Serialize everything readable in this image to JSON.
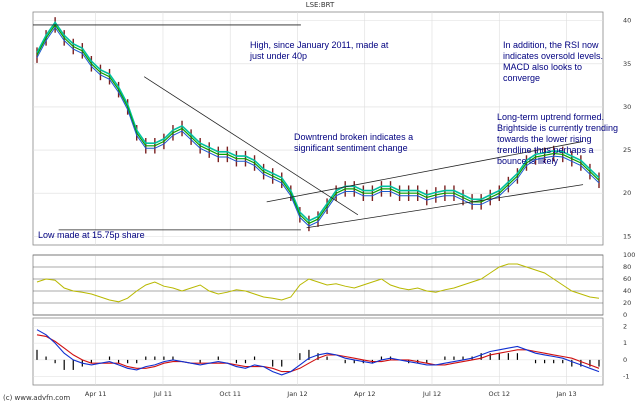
{
  "title": "LSE:BRT",
  "copyright": "(c) www.advfn.com",
  "annotations": {
    "high": "High, since January 2011, made at\njust under 40p",
    "rsi": "In addition, the RSI now\nindicates oversold levels.\nMACD also looks to\nconverge",
    "uptrend": "Long-term uptrend formed.\nBrightside is currently trending\ntowards the lower rising\ntrendline thus perhaps a\nbounce is likely",
    "downtrend": "Downtrend broken indicates a\nsignificant sentiment change",
    "low": "Low made at 15.75p share"
  },
  "chart_data": {
    "type": "line",
    "x_labels": [
      "Apr 11",
      "Jul 11",
      "Oct 11",
      "Jan 12",
      "Apr 12",
      "Jul 12",
      "Oct 12",
      "Jan 13"
    ],
    "price": {
      "ylim": [
        14,
        41
      ],
      "ticks": [
        "40",
        "35",
        "30",
        "25",
        "20",
        "15"
      ],
      "series": [
        {
          "values": [
            36,
            38,
            39.5,
            38,
            37,
            36.5,
            35,
            34,
            33.5,
            32,
            30,
            27,
            25.5,
            25.5,
            26,
            27,
            27.5,
            26.5,
            25.5,
            25,
            24.5,
            24.5,
            24,
            24,
            23.5,
            22.5,
            22,
            21.5,
            20,
            17.5,
            16.5,
            17,
            18.5,
            20,
            20.5,
            20.5,
            20,
            20,
            20.5,
            20.5,
            20,
            20,
            20,
            19.5,
            19.8,
            20,
            20,
            19.5,
            19,
            19,
            19.5,
            20,
            21,
            22,
            23.5,
            24.2,
            24.4,
            24.6,
            24.5,
            24,
            23.5,
            22.5,
            21.5
          ]
        }
      ]
    },
    "rsi": {
      "ylim": [
        0,
        100
      ],
      "ticks": [
        "100",
        "80",
        "60",
        "40",
        "20",
        "0"
      ],
      "values": [
        55,
        60,
        58,
        45,
        40,
        38,
        35,
        30,
        25,
        22,
        28,
        40,
        50,
        55,
        48,
        45,
        40,
        45,
        50,
        40,
        35,
        38,
        42,
        40,
        35,
        30,
        28,
        25,
        30,
        50,
        60,
        55,
        50,
        52,
        48,
        45,
        50,
        55,
        60,
        50,
        45,
        42,
        45,
        40,
        38,
        42,
        45,
        50,
        55,
        60,
        70,
        80,
        85,
        85,
        80,
        75,
        70,
        60,
        50,
        40,
        35,
        30,
        28
      ]
    },
    "macd": {
      "ylim": [
        -1.5,
        2.5
      ],
      "ticks": [
        "2",
        "1",
        "0",
        "-1"
      ],
      "macd": [
        1.8,
        1.5,
        1.0,
        0.4,
        0.0,
        -0.2,
        -0.3,
        -0.2,
        -0.1,
        -0.3,
        -0.5,
        -0.6,
        -0.4,
        -0.3,
        -0.1,
        0.0,
        -0.1,
        -0.2,
        -0.3,
        -0.2,
        -0.1,
        -0.2,
        -0.4,
        -0.5,
        -0.3,
        -0.4,
        -0.7,
        -0.9,
        -0.7,
        -0.3,
        0.1,
        0.3,
        0.4,
        0.3,
        0.1,
        0.0,
        -0.1,
        -0.2,
        0.0,
        0.1,
        0.0,
        -0.1,
        -0.2,
        -0.3,
        -0.3,
        -0.2,
        -0.1,
        0.0,
        0.1,
        0.3,
        0.5,
        0.6,
        0.7,
        0.8,
        0.6,
        0.4,
        0.3,
        0.2,
        0.1,
        -0.1,
        -0.3,
        -0.5,
        -0.7
      ],
      "signal": [
        1.5,
        1.4,
        1.1,
        0.7,
        0.3,
        0.0,
        -0.2,
        -0.2,
        -0.2,
        -0.2,
        -0.4,
        -0.5,
        -0.5,
        -0.4,
        -0.2,
        -0.1,
        -0.1,
        -0.2,
        -0.2,
        -0.2,
        -0.2,
        -0.2,
        -0.3,
        -0.4,
        -0.4,
        -0.4,
        -0.5,
        -0.7,
        -0.7,
        -0.5,
        -0.2,
        0.1,
        0.3,
        0.3,
        0.2,
        0.1,
        0.0,
        -0.1,
        -0.1,
        0.0,
        0.0,
        0.0,
        -0.1,
        -0.2,
        -0.3,
        -0.3,
        -0.2,
        -0.1,
        0.0,
        0.1,
        0.3,
        0.4,
        0.5,
        0.6,
        0.6,
        0.5,
        0.4,
        0.3,
        0.2,
        0.1,
        -0.1,
        -0.3,
        -0.5
      ]
    },
    "trendlines": [
      {
        "name": "downtrend",
        "points": [
          [
            0.195,
            33.5
          ],
          [
            0.57,
            17.5
          ]
        ]
      },
      {
        "name": "upper-uptrend",
        "points": [
          [
            0.41,
            19.0
          ],
          [
            0.965,
            26.0
          ]
        ]
      },
      {
        "name": "lower-uptrend",
        "points": [
          [
            0.48,
            16.0
          ],
          [
            0.965,
            21.0
          ]
        ]
      },
      {
        "name": "high-line",
        "points": [
          [
            0.0,
            39.5
          ],
          [
            0.47,
            39.5
          ]
        ]
      },
      {
        "name": "low-line",
        "points": [
          [
            0.045,
            15.75
          ],
          [
            0.47,
            15.75
          ]
        ]
      }
    ]
  }
}
